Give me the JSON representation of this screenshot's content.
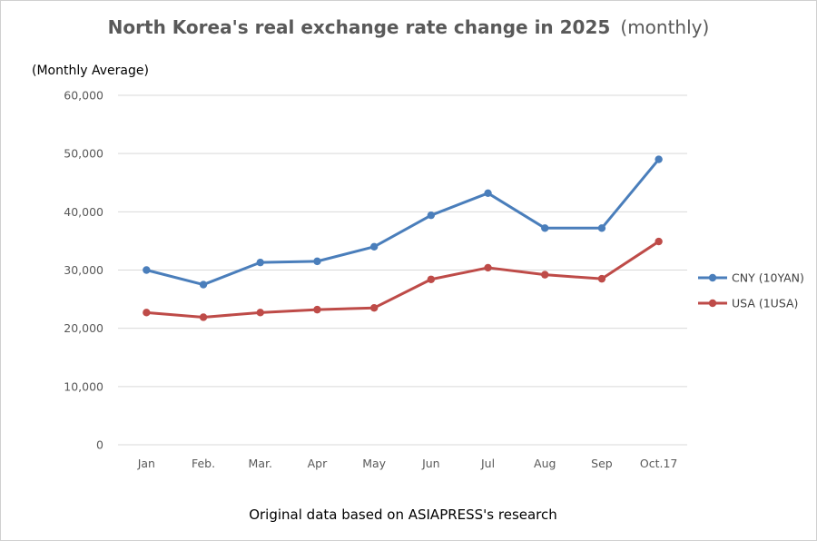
{
  "chart_data": {
    "type": "line",
    "title": "North Korea's real exchange rate change in 2025",
    "title_suffix": "(monthly)",
    "unit_label": "(Monthly Average)",
    "source_note": "Original data based on ASIAPRESS's research",
    "categories": [
      "Jan",
      "Feb.",
      "Mar.",
      "Apr",
      "May",
      "Jun",
      "Jul",
      "Aug",
      "Sep",
      "Oct.17"
    ],
    "ylim": [
      0,
      60000
    ],
    "yticks": [
      0,
      10000,
      20000,
      30000,
      40000,
      50000,
      60000
    ],
    "ytick_labels": [
      "0",
      "10,000",
      "20,000",
      "30,000",
      "40,000",
      "50,000",
      "60,000"
    ],
    "grid": true,
    "legend_position": "right",
    "series": [
      {
        "name": "CNY (10YAN)",
        "color": "#4a7ebb",
        "values": [
          30000,
          27500,
          31300,
          31500,
          34000,
          39400,
          43200,
          37200,
          37200,
          49000
        ]
      },
      {
        "name": "USA (1USA)",
        "color": "#be4b48",
        "values": [
          22700,
          21900,
          22700,
          23200,
          23500,
          28400,
          30400,
          29200,
          28500,
          34900
        ]
      }
    ]
  }
}
